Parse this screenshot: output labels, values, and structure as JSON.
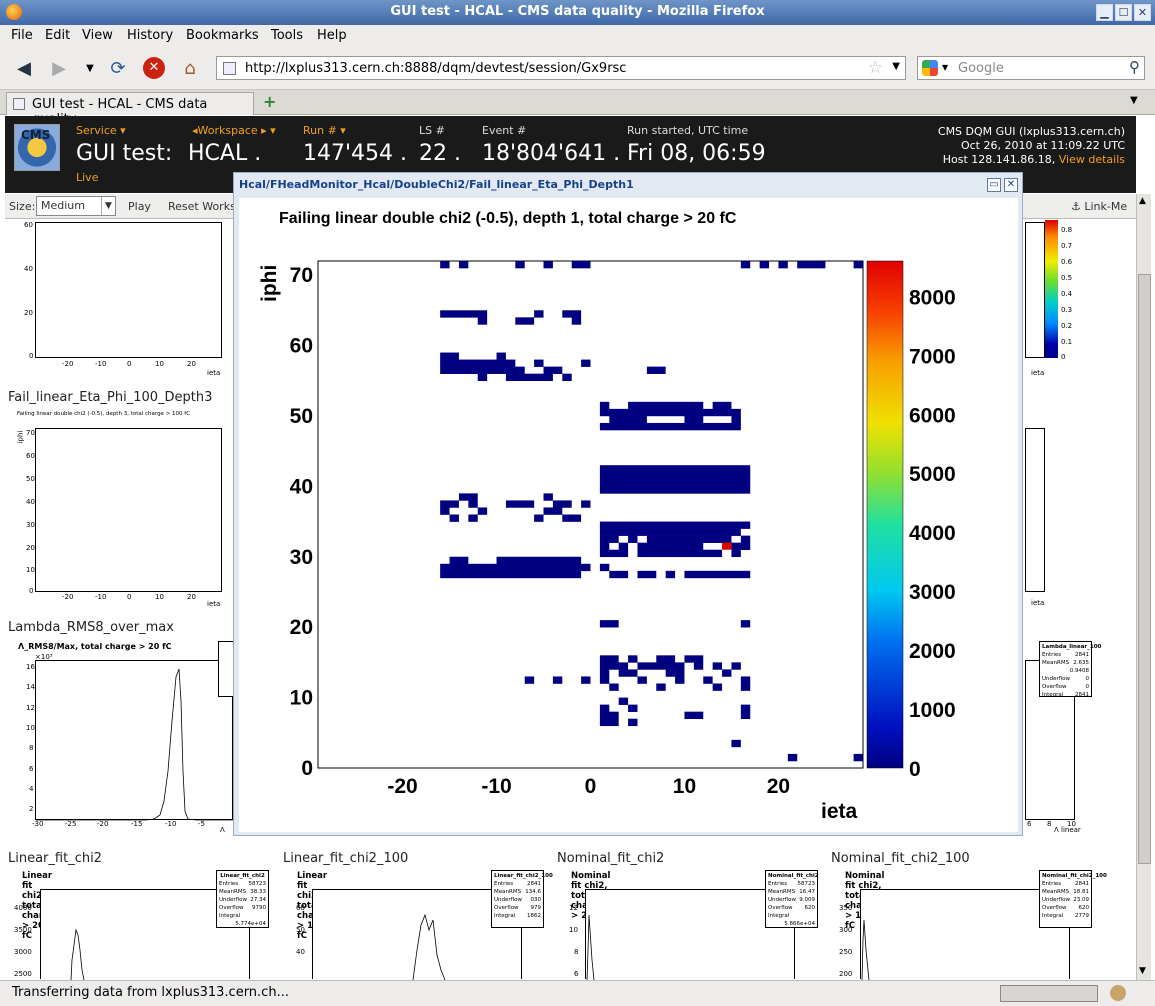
{
  "window": {
    "title": "GUI test - HCAL - CMS data quality - Mozilla Firefox"
  },
  "menu": [
    "File",
    "Edit",
    "View",
    "History",
    "Bookmarks",
    "Tools",
    "Help"
  ],
  "nav": {
    "url": "http://lxplus313.cern.ch:8888/dqm/devtest/session/Gx9rsc",
    "search_placeholder": "Google"
  },
  "tab": {
    "label": "GUI test - HCAL - CMS data quality"
  },
  "dqm": {
    "service_label": "Service",
    "service_value": "GUI test:",
    "live": "Live",
    "workspace_label": "Workspace",
    "workspace_value": "HCAL",
    "run_label": "Run #",
    "run_value": "147'454",
    "ls_label": "LS #",
    "ls_value": "22",
    "event_label": "Event #",
    "event_value": "18'804'641",
    "runstart_label": "Run started, UTC time",
    "runstart_value": "Fri 08, 06:59",
    "gui_name": "CMS DQM GUI (lxplus313.cern.ch)",
    "gui_date": "Oct 26, 2010 at 11:09.22 UTC",
    "gui_host": "Host 128.141.86.18,",
    "view_details": "View details"
  },
  "toolbar": {
    "size_label": "Size:",
    "size_value": "Medium",
    "play": "Play",
    "reset": "Reset Works",
    "link_me": "Link-Me"
  },
  "plots": {
    "p1_name": "Fail_linear_Eta_Phi_100_Depth3",
    "p1_title": "Failing linear double chi2 (-0.5), depth 3, total charge > 100 fC",
    "p2_name": "Lambda_RMS8_over_max",
    "p2_title": "Λ_RMS8/Max, total charge > 20 fC",
    "linear_fit": {
      "name": "Linear_fit_chi2",
      "title": "Linear fit chi2, total charge > 20 fC",
      "stats_title": "Linear_fit_chi2",
      "stats": [
        [
          "Entries",
          "58723"
        ],
        [
          "Mean",
          "38.33"
        ],
        [
          "RMS",
          "27.34"
        ],
        [
          "Underflow",
          "0"
        ],
        [
          "Overflow",
          "979"
        ],
        [
          "Integral",
          "5.774e+04"
        ]
      ]
    },
    "linear_fit_100": {
      "name": "Linear_fit_chi2_100",
      "title": "Linear fit chi2, total charge > 100 fC",
      "stats_title": "Linear_fit_chi2_100",
      "stats": [
        [
          "Entries",
          "2841"
        ],
        [
          "Mean",
          "134.6"
        ],
        [
          "RMS",
          "30"
        ],
        [
          "Underflow",
          "0"
        ],
        [
          "Overflow",
          "979"
        ],
        [
          "Integral",
          "1862"
        ]
      ]
    },
    "nominal_fit": {
      "name": "Nominal_fit_chi2",
      "title": "Nominal fit chi2, total charge > 20 fC",
      "stats_title": "Nominal_fit_chi2",
      "stats": [
        [
          "Entries",
          "58723"
        ],
        [
          "Mean",
          "16.47"
        ],
        [
          "RMS",
          "9.009"
        ],
        [
          "Underflow",
          "0"
        ],
        [
          "Overflow",
          "62"
        ],
        [
          "Integral",
          "5.866e+04"
        ]
      ]
    },
    "nominal_fit_100": {
      "name": "Nominal_fit_chi2_100",
      "title": "Nominal fit chi2, total charge > 100 fC",
      "stats_title": "Nominal_fit_chi2_100",
      "stats": [
        [
          "Entries",
          "2841"
        ],
        [
          "Mean",
          "18.81"
        ],
        [
          "RMS",
          "23.09"
        ],
        [
          "Underflow",
          "0"
        ],
        [
          "Overflow",
          "62"
        ],
        [
          "Integral",
          "2779"
        ]
      ]
    },
    "lambda_linear": {
      "stats_title": "Lambda_linear_100",
      "stats": [
        [
          "Entries",
          "2841"
        ],
        [
          "Mean",
          "2.635"
        ],
        [
          "RMS",
          "0.9408"
        ],
        [
          "Underflow",
          "0"
        ],
        [
          "Overflow",
          "0"
        ],
        [
          "Integral",
          "2841"
        ]
      ]
    }
  },
  "popup": {
    "path": "Hcal/FHeadMonitor_Hcal/DoubleChi2/Fail_linear_Eta_Phi_Depth1"
  },
  "chart_data": {
    "type": "heatmap",
    "title": "Failing linear double chi2 (-0.5), depth 1, total charge > 20 fC",
    "xlabel": "ieta",
    "ylabel": "iphi",
    "xlim": [
      -29,
      29
    ],
    "ylim": [
      0,
      72
    ],
    "xticks": [
      -20,
      -10,
      0,
      10,
      20
    ],
    "yticks": [
      0,
      10,
      20,
      30,
      40,
      50,
      60,
      70
    ],
    "zlim": [
      0,
      8600
    ],
    "zticks": [
      0,
      1000,
      2000,
      3000,
      4000,
      5000,
      6000,
      7000,
      8000
    ],
    "segments_note": "",
    "rows": [
      {
        "y": 71,
        "x": [
          [
            -16,
            -15
          ],
          [
            -14,
            -13
          ],
          [
            -8,
            -7
          ],
          [
            -5,
            -4
          ],
          [
            -2,
            0
          ],
          [
            16,
            17
          ],
          [
            18,
            19
          ],
          [
            20,
            21
          ],
          [
            22,
            25
          ],
          [
            28,
            29
          ]
        ]
      },
      {
        "y": 64,
        "x": [
          [
            -16,
            -11
          ],
          [
            -6,
            -5
          ],
          [
            -3,
            -1
          ]
        ]
      },
      {
        "y": 63,
        "x": [
          [
            -12,
            -11
          ],
          [
            -8,
            -6
          ],
          [
            -2,
            -1
          ]
        ]
      },
      {
        "y": 58,
        "x": [
          [
            -16,
            -14
          ],
          [
            -10,
            -9
          ]
        ]
      },
      {
        "y": 57,
        "x": [
          [
            -16,
            -8
          ],
          [
            -6,
            -5
          ],
          [
            -1,
            0
          ]
        ]
      },
      {
        "y": 56,
        "x": [
          [
            -16,
            -7
          ],
          [
            -5,
            -3
          ],
          [
            6,
            8
          ]
        ]
      },
      {
        "y": 55,
        "x": [
          [
            -12,
            -11
          ],
          [
            -9,
            -4
          ],
          [
            -3,
            -2
          ]
        ]
      },
      {
        "y": 51,
        "x": [
          [
            1,
            2
          ],
          [
            4,
            12
          ],
          [
            13,
            15
          ]
        ]
      },
      {
        "y": 50,
        "x": [
          [
            1,
            16
          ]
        ]
      },
      {
        "y": 49,
        "x": [
          [
            2,
            6
          ],
          [
            10,
            12
          ],
          [
            15,
            16
          ]
        ]
      },
      {
        "y": 48,
        "x": [
          [
            1,
            16
          ]
        ]
      },
      {
        "y": 42,
        "x": [
          [
            1,
            17
          ]
        ]
      },
      {
        "y": 41,
        "x": [
          [
            1,
            17
          ]
        ]
      },
      {
        "y": 40,
        "x": [
          [
            1,
            17
          ]
        ]
      },
      {
        "y": 39,
        "x": [
          [
            1,
            17
          ]
        ]
      },
      {
        "y": 38,
        "x": [
          [
            -14,
            -12
          ],
          [
            -5,
            -4
          ]
        ]
      },
      {
        "y": 37,
        "x": [
          [
            -16,
            -14
          ],
          [
            -13,
            -12
          ],
          [
            -9,
            -6
          ],
          [
            -4,
            -2
          ],
          [
            -1,
            0
          ]
        ]
      },
      {
        "y": 36,
        "x": [
          [
            -16,
            -15
          ],
          [
            -12,
            -11
          ],
          [
            -5,
            -3
          ]
        ]
      },
      {
        "y": 35,
        "x": [
          [
            -15,
            -14
          ],
          [
            -13,
            -12
          ],
          [
            -6,
            -5
          ],
          [
            -3,
            -1
          ]
        ]
      },
      {
        "y": 34,
        "x": [
          [
            1,
            17
          ]
        ]
      },
      {
        "y": 33,
        "x": [
          [
            1,
            16
          ]
        ]
      },
      {
        "y": 32,
        "x": [
          [
            1,
            3
          ],
          [
            4,
            5
          ],
          [
            6,
            15
          ],
          [
            16,
            17
          ]
        ]
      },
      {
        "y": 31,
        "x": [
          [
            1,
            2
          ],
          [
            3,
            4
          ],
          [
            5,
            12
          ],
          [
            15,
            17
          ]
        ]
      },
      {
        "y": 30,
        "x": [
          [
            1,
            4
          ],
          [
            5,
            14
          ],
          [
            15,
            16
          ]
        ]
      },
      {
        "y": 29,
        "x": [
          [
            -15,
            -13
          ],
          [
            -10,
            -1
          ]
        ]
      },
      {
        "y": 28,
        "x": [
          [
            -16,
            0
          ],
          [
            1,
            2
          ]
        ]
      },
      {
        "y": 27,
        "x": [
          [
            -16,
            -1
          ],
          [
            2,
            4
          ],
          [
            5,
            7
          ],
          [
            8,
            9
          ],
          [
            10,
            17
          ]
        ]
      },
      {
        "y": 20,
        "x": [
          [
            1,
            3
          ],
          [
            16,
            17
          ]
        ]
      },
      {
        "y": 15,
        "x": [
          [
            1,
            3
          ],
          [
            4,
            5
          ],
          [
            7,
            9
          ],
          [
            10,
            12
          ]
        ]
      },
      {
        "y": 14,
        "x": [
          [
            1,
            4
          ],
          [
            5,
            10
          ],
          [
            11,
            12
          ],
          [
            13,
            14
          ],
          [
            15,
            16
          ]
        ]
      },
      {
        "y": 13,
        "x": [
          [
            1,
            2
          ],
          [
            3,
            5
          ],
          [
            8,
            9
          ],
          [
            9,
            10
          ],
          [
            14,
            15
          ]
        ]
      },
      {
        "y": 12,
        "x": [
          [
            -7,
            -6
          ],
          [
            -4,
            -3
          ],
          [
            -1,
            0
          ],
          [
            1,
            2
          ],
          [
            5,
            6
          ],
          [
            9,
            10
          ],
          [
            12,
            13
          ],
          [
            16,
            17
          ]
        ]
      },
      {
        "y": 11,
        "x": [
          [
            2,
            3
          ],
          [
            7,
            8
          ],
          [
            13,
            14
          ],
          [
            16,
            17
          ]
        ]
      },
      {
        "y": 9,
        "x": [
          [
            3,
            4
          ]
        ]
      },
      {
        "y": 8,
        "x": [
          [
            1,
            2
          ],
          [
            4,
            5
          ],
          [
            16,
            17
          ]
        ]
      },
      {
        "y": 7,
        "x": [
          [
            1,
            3
          ],
          [
            10,
            12
          ],
          [
            16,
            17
          ]
        ]
      },
      {
        "y": 6,
        "x": [
          [
            1,
            3
          ],
          [
            4,
            5
          ]
        ]
      },
      {
        "y": 3,
        "x": [
          [
            15,
            16
          ]
        ]
      },
      {
        "y": 1,
        "x": [
          [
            21,
            22
          ],
          [
            28,
            29
          ]
        ]
      }
    ],
    "hot_bins": [
      {
        "x": 14,
        "y": 31,
        "z": 8200
      }
    ]
  }
}
